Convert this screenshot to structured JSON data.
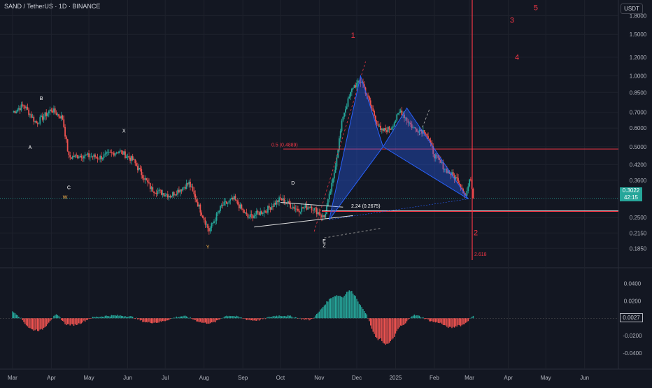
{
  "header": {
    "symbol_title": "SAND / TetherUS · 1D · BINANCE",
    "currency": "USDT"
  },
  "price_tag": {
    "price": "0.3022",
    "countdown": "42:15"
  },
  "osc_tag": {
    "value": "0.0027"
  },
  "colors": {
    "bg": "#131722",
    "up": "#26a69a",
    "down": "#ef5350",
    "grid": "#1e222d",
    "axis_text": "#b2b5be",
    "red_line": "#f23645",
    "harmonic": "#2962ff",
    "white_label": "#ffffff",
    "orange_label": "#ffb74d"
  },
  "chart_data": [
    {
      "type": "candlestick",
      "title": "SAND / TetherUS · 1D · BINANCE",
      "y_scale": "log",
      "ylim": [
        0.165,
        2.1
      ],
      "y_ticks": [
        "1.8000",
        "1.5000",
        "1.2000",
        "1.0000",
        "0.8500",
        "0.7000",
        "0.6000",
        "0.5000",
        "0.4200",
        "0.3600",
        "0.2500",
        "0.2150",
        "0.1850"
      ],
      "x_ticks": [
        "Mar",
        "Apr",
        "May",
        "Jun",
        "Jul",
        "Aug",
        "Sep",
        "Oct",
        "Nov",
        "Dec",
        "2025",
        "Feb",
        "Mar",
        "Apr",
        "May",
        "Jun"
      ],
      "close_series_approx": [
        {
          "date": "2024-03-01",
          "close": 0.7
        },
        {
          "date": "2024-03-10",
          "close": 0.75
        },
        {
          "date": "2024-03-20",
          "close": 0.63
        },
        {
          "date": "2024-04-01",
          "close": 0.72
        },
        {
          "date": "2024-04-10",
          "close": 0.66
        },
        {
          "date": "2024-04-15",
          "close": 0.45
        },
        {
          "date": "2024-04-25",
          "close": 0.46
        },
        {
          "date": "2024-05-10",
          "close": 0.45
        },
        {
          "date": "2024-05-25",
          "close": 0.48
        },
        {
          "date": "2024-06-05",
          "close": 0.44
        },
        {
          "date": "2024-06-20",
          "close": 0.33
        },
        {
          "date": "2024-07-05",
          "close": 0.31
        },
        {
          "date": "2024-07-20",
          "close": 0.35
        },
        {
          "date": "2024-08-05",
          "close": 0.22
        },
        {
          "date": "2024-08-15",
          "close": 0.28
        },
        {
          "date": "2024-08-25",
          "close": 0.3
        },
        {
          "date": "2024-09-05",
          "close": 0.25
        },
        {
          "date": "2024-09-20",
          "close": 0.27
        },
        {
          "date": "2024-10-01",
          "close": 0.3
        },
        {
          "date": "2024-10-15",
          "close": 0.27
        },
        {
          "date": "2024-10-25",
          "close": 0.28
        },
        {
          "date": "2024-11-05",
          "close": 0.25
        },
        {
          "date": "2024-11-12",
          "close": 0.36
        },
        {
          "date": "2024-11-20",
          "close": 0.68
        },
        {
          "date": "2024-11-28",
          "close": 0.9
        },
        {
          "date": "2024-12-05",
          "close": 0.95
        },
        {
          "date": "2024-12-12",
          "close": 0.75
        },
        {
          "date": "2024-12-20",
          "close": 0.58
        },
        {
          "date": "2024-12-28",
          "close": 0.6
        },
        {
          "date": "2025-01-05",
          "close": 0.71
        },
        {
          "date": "2025-01-15",
          "close": 0.6
        },
        {
          "date": "2025-01-25",
          "close": 0.58
        },
        {
          "date": "2025-02-01",
          "close": 0.46
        },
        {
          "date": "2025-02-10",
          "close": 0.4
        },
        {
          "date": "2025-02-20",
          "close": 0.36
        },
        {
          "date": "2025-02-26",
          "close": 0.31
        },
        {
          "date": "2025-03-02",
          "close": 0.37
        },
        {
          "date": "2025-03-04",
          "close": 0.3022
        }
      ],
      "annotations": [
        {
          "text": "1",
          "role": "red-wave"
        },
        {
          "text": "2",
          "role": "red-wave"
        },
        {
          "text": "3",
          "role": "red-wave"
        },
        {
          "text": "4",
          "role": "red-wave"
        },
        {
          "text": "5",
          "role": "red-wave"
        },
        {
          "text": "A"
        },
        {
          "text": "B"
        },
        {
          "text": "C"
        },
        {
          "text": "W"
        },
        {
          "text": "X"
        },
        {
          "text": "Y"
        },
        {
          "text": "D"
        },
        {
          "text": "E"
        },
        {
          "text": "Z"
        },
        {
          "text": "0.5 (0.4889)",
          "price": 0.4889
        },
        {
          "text": "2.24 (0.2675)",
          "price": 0.2675
        },
        {
          "text": "2.618"
        }
      ],
      "last_price": 0.3022
    },
    {
      "type": "bar",
      "title": "oscillator",
      "ylim": [
        -0.048,
        0.046
      ],
      "y_ticks": [
        "0.0400",
        "0.0200",
        "-0.0200",
        "-0.0400"
      ],
      "last_value": 0.0027,
      "values_approx": [
        {
          "date": "2024-03-01",
          "value": 0.012
        },
        {
          "date": "2024-03-20",
          "value": -0.022
        },
        {
          "date": "2024-04-05",
          "value": 0.006
        },
        {
          "date": "2024-04-15",
          "value": -0.012
        },
        {
          "date": "2024-05-05",
          "value": 0.002
        },
        {
          "date": "2024-06-01",
          "value": 0.004
        },
        {
          "date": "2024-06-20",
          "value": -0.008
        },
        {
          "date": "2024-07-15",
          "value": 0.004
        },
        {
          "date": "2024-08-05",
          "value": -0.009
        },
        {
          "date": "2024-08-20",
          "value": 0.005
        },
        {
          "date": "2024-09-10",
          "value": -0.004
        },
        {
          "date": "2024-10-01",
          "value": 0.005
        },
        {
          "date": "2024-10-25",
          "value": -0.003
        },
        {
          "date": "2024-11-20",
          "value": 0.04
        },
        {
          "date": "2024-12-05",
          "value": 0.02
        },
        {
          "date": "2024-12-20",
          "value": -0.04
        },
        {
          "date": "2025-01-05",
          "value": -0.014
        },
        {
          "date": "2025-01-15",
          "value": 0.006
        },
        {
          "date": "2025-02-05",
          "value": -0.008
        },
        {
          "date": "2025-02-20",
          "value": -0.013
        },
        {
          "date": "2025-03-04",
          "value": 0.0027
        }
      ]
    }
  ]
}
